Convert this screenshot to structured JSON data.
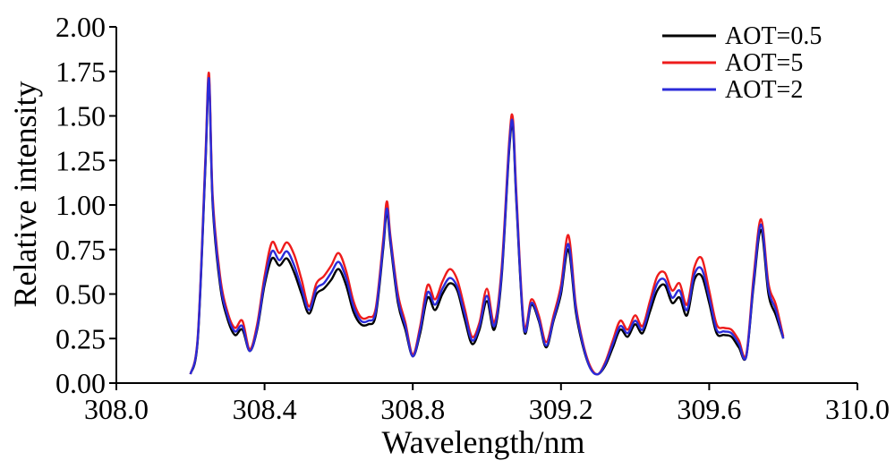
{
  "chart_data": {
    "type": "line",
    "title": "",
    "xlabel": "Wavelength/nm",
    "ylabel": "Relative intensity",
    "xlim": [
      308.0,
      310.0
    ],
    "ylim": [
      0.0,
      2.0
    ],
    "x_ticks": [
      "308.0",
      "308.4",
      "308.8",
      "309.2",
      "309.6",
      "310.0"
    ],
    "y_ticks": [
      "0.00",
      "0.25",
      "0.50",
      "0.75",
      "1.00",
      "1.25",
      "1.50",
      "1.75",
      "2.00"
    ],
    "grid": false,
    "legend_position": "top-right",
    "x": [
      308.2,
      308.22,
      308.24,
      308.25,
      308.26,
      308.28,
      308.3,
      308.32,
      308.34,
      308.36,
      308.38,
      308.4,
      308.42,
      308.44,
      308.46,
      308.48,
      308.5,
      308.52,
      308.54,
      308.56,
      308.58,
      308.6,
      308.62,
      308.64,
      308.66,
      308.68,
      308.7,
      308.72,
      308.73,
      308.74,
      308.76,
      308.78,
      308.8,
      308.82,
      308.84,
      308.86,
      308.88,
      308.9,
      308.92,
      308.94,
      308.96,
      308.98,
      309.0,
      309.02,
      309.04,
      309.06,
      309.07,
      309.08,
      309.1,
      309.12,
      309.14,
      309.16,
      309.18,
      309.2,
      309.22,
      309.24,
      309.26,
      309.28,
      309.3,
      309.32,
      309.34,
      309.36,
      309.38,
      309.4,
      309.42,
      309.44,
      309.46,
      309.48,
      309.5,
      309.52,
      309.54,
      309.56,
      309.58,
      309.6,
      309.62,
      309.64,
      309.66,
      309.68,
      309.7,
      309.72,
      309.74,
      309.76,
      309.78,
      309.8
    ],
    "series": [
      {
        "name": "AOT=0.5",
        "color": "#000000",
        "values": [
          0.05,
          0.25,
          1.2,
          1.7,
          1.0,
          0.55,
          0.36,
          0.27,
          0.3,
          0.18,
          0.3,
          0.55,
          0.7,
          0.66,
          0.7,
          0.62,
          0.5,
          0.39,
          0.5,
          0.53,
          0.58,
          0.64,
          0.55,
          0.4,
          0.33,
          0.33,
          0.38,
          0.75,
          0.96,
          0.78,
          0.45,
          0.3,
          0.15,
          0.28,
          0.48,
          0.41,
          0.5,
          0.56,
          0.52,
          0.36,
          0.22,
          0.3,
          0.46,
          0.3,
          0.6,
          1.3,
          1.44,
          1.0,
          0.3,
          0.44,
          0.35,
          0.2,
          0.35,
          0.5,
          0.75,
          0.4,
          0.2,
          0.08,
          0.05,
          0.1,
          0.2,
          0.3,
          0.26,
          0.33,
          0.28,
          0.4,
          0.52,
          0.55,
          0.45,
          0.48,
          0.38,
          0.58,
          0.6,
          0.45,
          0.28,
          0.27,
          0.26,
          0.2,
          0.15,
          0.55,
          0.86,
          0.5,
          0.38,
          0.25
        ]
      },
      {
        "name": "AOT=5",
        "color": "#ee1c1c",
        "values": [
          0.05,
          0.27,
          1.25,
          1.74,
          1.05,
          0.6,
          0.4,
          0.31,
          0.35,
          0.19,
          0.33,
          0.6,
          0.79,
          0.73,
          0.79,
          0.72,
          0.58,
          0.43,
          0.56,
          0.6,
          0.66,
          0.73,
          0.63,
          0.46,
          0.37,
          0.37,
          0.42,
          0.8,
          1.02,
          0.82,
          0.5,
          0.34,
          0.16,
          0.32,
          0.55,
          0.47,
          0.57,
          0.64,
          0.58,
          0.42,
          0.26,
          0.34,
          0.53,
          0.34,
          0.65,
          1.35,
          1.49,
          1.05,
          0.33,
          0.47,
          0.38,
          0.23,
          0.38,
          0.55,
          0.83,
          0.44,
          0.22,
          0.09,
          0.05,
          0.12,
          0.24,
          0.35,
          0.3,
          0.38,
          0.32,
          0.46,
          0.6,
          0.62,
          0.52,
          0.56,
          0.44,
          0.65,
          0.7,
          0.52,
          0.33,
          0.31,
          0.3,
          0.24,
          0.16,
          0.6,
          0.92,
          0.56,
          0.44,
          0.26
        ]
      },
      {
        "name": "AOT=2",
        "color": "#2b2bd9",
        "values": [
          0.05,
          0.26,
          1.22,
          1.71,
          1.02,
          0.57,
          0.38,
          0.29,
          0.32,
          0.18,
          0.31,
          0.57,
          0.74,
          0.69,
          0.74,
          0.66,
          0.53,
          0.41,
          0.53,
          0.56,
          0.62,
          0.68,
          0.59,
          0.43,
          0.35,
          0.35,
          0.4,
          0.77,
          0.98,
          0.8,
          0.47,
          0.32,
          0.15,
          0.3,
          0.51,
          0.44,
          0.53,
          0.59,
          0.54,
          0.39,
          0.24,
          0.32,
          0.49,
          0.32,
          0.62,
          1.32,
          1.46,
          1.02,
          0.31,
          0.45,
          0.36,
          0.21,
          0.36,
          0.52,
          0.78,
          0.42,
          0.21,
          0.08,
          0.05,
          0.11,
          0.22,
          0.32,
          0.28,
          0.35,
          0.3,
          0.43,
          0.56,
          0.58,
          0.48,
          0.52,
          0.41,
          0.61,
          0.64,
          0.48,
          0.3,
          0.29,
          0.28,
          0.22,
          0.15,
          0.57,
          0.89,
          0.53,
          0.41,
          0.25
        ]
      }
    ]
  }
}
